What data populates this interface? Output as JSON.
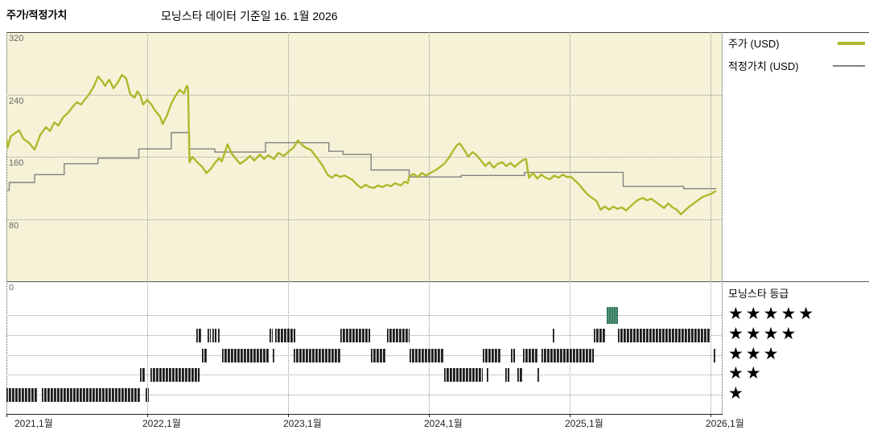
{
  "header": {
    "left_title": "주가/적정가치",
    "main_title": "모닝스타 데이터 기준일 16. 1월 2026"
  },
  "legend": {
    "price_label": "주가 (USD)",
    "fair_value_label": "적정가치 (USD)"
  },
  "rating_legend": {
    "title": "모닝스타 등급",
    "rows": [
      {
        "stars": 5,
        "label": "★★★★★"
      },
      {
        "stars": 4,
        "label": "★★★★"
      },
      {
        "stars": 3,
        "label": "★★★"
      },
      {
        "stars": 2,
        "label": "★★"
      },
      {
        "stars": 1,
        "label": "★"
      }
    ]
  },
  "colors": {
    "price_line": "#AFB82C",
    "fair_value_line": "#828282",
    "plot_background": "#F6F2D7",
    "rating_tick": "#1E1E1E",
    "rating_highlight_green": "#3E8A6B"
  },
  "chart_data": {
    "type": "line",
    "title": "모닝스타 데이터 기준일 16. 1월 2026",
    "x_axis": {
      "unit": "year",
      "range": [
        2021.0,
        2026.08
      ],
      "tick_years": [
        2021,
        2022,
        2023,
        2024,
        2025,
        2026
      ],
      "tick_labels": [
        "2021,1월",
        "2022,1월",
        "2023,1월",
        "2024,1월",
        "2025,1월",
        "2026,1월"
      ]
    },
    "y_axis": {
      "unit": "USD",
      "range": [
        0,
        320
      ],
      "ticks": [
        320,
        240,
        160,
        80,
        0
      ]
    },
    "grid": true,
    "legend_position": "right",
    "series": [
      {
        "name": "주가 (USD)",
        "style": "line",
        "color": "#AFB82C",
        "points": [
          [
            2021.0,
            183
          ],
          [
            2021.01,
            172
          ],
          [
            2021.03,
            186
          ],
          [
            2021.06,
            190
          ],
          [
            2021.09,
            194
          ],
          [
            2021.12,
            183
          ],
          [
            2021.16,
            178
          ],
          [
            2021.2,
            169
          ],
          [
            2021.24,
            188
          ],
          [
            2021.28,
            198
          ],
          [
            2021.31,
            193
          ],
          [
            2021.34,
            204
          ],
          [
            2021.37,
            200
          ],
          [
            2021.4,
            210
          ],
          [
            2021.44,
            217
          ],
          [
            2021.47,
            224
          ],
          [
            2021.5,
            230
          ],
          [
            2021.53,
            227
          ],
          [
            2021.56,
            234
          ],
          [
            2021.59,
            241
          ],
          [
            2021.62,
            250
          ],
          [
            2021.65,
            263
          ],
          [
            2021.68,
            257
          ],
          [
            2021.7,
            251
          ],
          [
            2021.73,
            259
          ],
          [
            2021.76,
            248
          ],
          [
            2021.79,
            255
          ],
          [
            2021.82,
            265
          ],
          [
            2021.85,
            261
          ],
          [
            2021.88,
            240
          ],
          [
            2021.91,
            236
          ],
          [
            2021.93,
            244
          ],
          [
            2021.95,
            239
          ],
          [
            2021.97,
            227
          ],
          [
            2022.0,
            233
          ],
          [
            2022.03,
            227
          ],
          [
            2022.06,
            218
          ],
          [
            2022.09,
            212
          ],
          [
            2022.11,
            202
          ],
          [
            2022.14,
            213
          ],
          [
            2022.17,
            228
          ],
          [
            2022.2,
            238
          ],
          [
            2022.23,
            246
          ],
          [
            2022.26,
            241
          ],
          [
            2022.28,
            251
          ],
          [
            2022.29,
            249
          ],
          [
            2022.3,
            153
          ],
          [
            2022.32,
            160
          ],
          [
            2022.34,
            156
          ],
          [
            2022.36,
            152
          ],
          [
            2022.39,
            147
          ],
          [
            2022.42,
            139
          ],
          [
            2022.45,
            144
          ],
          [
            2022.48,
            152
          ],
          [
            2022.51,
            158
          ],
          [
            2022.53,
            154
          ],
          [
            2022.55,
            165
          ],
          [
            2022.57,
            176
          ],
          [
            2022.6,
            164
          ],
          [
            2022.63,
            157
          ],
          [
            2022.66,
            151
          ],
          [
            2022.7,
            156
          ],
          [
            2022.73,
            161
          ],
          [
            2022.76,
            155
          ],
          [
            2022.8,
            163
          ],
          [
            2022.83,
            157
          ],
          [
            2022.86,
            162
          ],
          [
            2022.9,
            157
          ],
          [
            2022.93,
            165
          ],
          [
            2022.97,
            161
          ],
          [
            2023.0,
            166
          ],
          [
            2023.04,
            172
          ],
          [
            2023.07,
            181
          ],
          [
            2023.1,
            175
          ],
          [
            2023.13,
            171
          ],
          [
            2023.16,
            169
          ],
          [
            2023.19,
            162
          ],
          [
            2023.22,
            155
          ],
          [
            2023.25,
            147
          ],
          [
            2023.28,
            137
          ],
          [
            2023.31,
            133
          ],
          [
            2023.34,
            137
          ],
          [
            2023.37,
            134
          ],
          [
            2023.4,
            136
          ],
          [
            2023.43,
            133
          ],
          [
            2023.46,
            130
          ],
          [
            2023.49,
            124
          ],
          [
            2023.52,
            120
          ],
          [
            2023.55,
            124
          ],
          [
            2023.58,
            121
          ],
          [
            2023.61,
            120
          ],
          [
            2023.64,
            123
          ],
          [
            2023.67,
            121
          ],
          [
            2023.7,
            124
          ],
          [
            2023.73,
            122
          ],
          [
            2023.76,
            126
          ],
          [
            2023.8,
            123
          ],
          [
            2023.83,
            128
          ],
          [
            2023.85,
            126
          ],
          [
            2023.86,
            134
          ],
          [
            2023.89,
            138
          ],
          [
            2023.92,
            134
          ],
          [
            2023.95,
            139
          ],
          [
            2023.98,
            136
          ],
          [
            2024.01,
            139
          ],
          [
            2024.05,
            143
          ],
          [
            2024.08,
            147
          ],
          [
            2024.11,
            151
          ],
          [
            2024.14,
            158
          ],
          [
            2024.17,
            167
          ],
          [
            2024.2,
            175
          ],
          [
            2024.22,
            177
          ],
          [
            2024.25,
            169
          ],
          [
            2024.28,
            160
          ],
          [
            2024.31,
            166
          ],
          [
            2024.34,
            162
          ],
          [
            2024.37,
            155
          ],
          [
            2024.4,
            148
          ],
          [
            2024.43,
            153
          ],
          [
            2024.46,
            146
          ],
          [
            2024.49,
            151
          ],
          [
            2024.52,
            153
          ],
          [
            2024.55,
            148
          ],
          [
            2024.58,
            152
          ],
          [
            2024.61,
            147
          ],
          [
            2024.64,
            152
          ],
          [
            2024.67,
            156
          ],
          [
            2024.69,
            157
          ],
          [
            2024.71,
            133
          ],
          [
            2024.74,
            139
          ],
          [
            2024.77,
            132
          ],
          [
            2024.8,
            137
          ],
          [
            2024.83,
            133
          ],
          [
            2024.86,
            131
          ],
          [
            2024.89,
            136
          ],
          [
            2024.92,
            133
          ],
          [
            2024.95,
            137
          ],
          [
            2024.98,
            134
          ],
          [
            2025.01,
            134
          ],
          [
            2025.04,
            129
          ],
          [
            2025.07,
            124
          ],
          [
            2025.1,
            117
          ],
          [
            2025.13,
            111
          ],
          [
            2025.16,
            107
          ],
          [
            2025.19,
            103
          ],
          [
            2025.22,
            92
          ],
          [
            2025.25,
            96
          ],
          [
            2025.28,
            92
          ],
          [
            2025.31,
            96
          ],
          [
            2025.34,
            93
          ],
          [
            2025.37,
            95
          ],
          [
            2025.4,
            91
          ],
          [
            2025.43,
            96
          ],
          [
            2025.46,
            101
          ],
          [
            2025.49,
            105
          ],
          [
            2025.52,
            107
          ],
          [
            2025.55,
            104
          ],
          [
            2025.58,
            106
          ],
          [
            2025.61,
            102
          ],
          [
            2025.64,
            98
          ],
          [
            2025.67,
            94
          ],
          [
            2025.7,
            100
          ],
          [
            2025.73,
            95
          ],
          [
            2025.76,
            92
          ],
          [
            2025.79,
            86
          ],
          [
            2025.82,
            91
          ],
          [
            2025.85,
            96
          ],
          [
            2025.88,
            100
          ],
          [
            2025.91,
            104
          ],
          [
            2025.94,
            108
          ],
          [
            2025.97,
            110
          ],
          [
            2026.0,
            112
          ],
          [
            2026.04,
            116
          ]
        ]
      },
      {
        "name": "적정가치 (USD)",
        "style": "step",
        "color": "#828282",
        "points": [
          [
            2021.0,
            117
          ],
          [
            2021.02,
            127
          ],
          [
            2021.2,
            137
          ],
          [
            2021.41,
            151
          ],
          [
            2021.65,
            158
          ],
          [
            2021.94,
            170
          ],
          [
            2022.17,
            191
          ],
          [
            2022.3,
            170
          ],
          [
            2022.48,
            166
          ],
          [
            2022.84,
            178
          ],
          [
            2023.29,
            167
          ],
          [
            2023.39,
            163
          ],
          [
            2023.59,
            143
          ],
          [
            2023.86,
            134
          ],
          [
            2024.23,
            136
          ],
          [
            2024.68,
            140
          ],
          [
            2025.38,
            122
          ],
          [
            2025.81,
            119
          ],
          [
            2026.04,
            119
          ]
        ]
      }
    ],
    "ratings_timeline": {
      "row_order": [
        5,
        4,
        3,
        2,
        1
      ],
      "highlight": {
        "stars": 5,
        "start": 2025.26,
        "end": 2025.34
      },
      "segments": [
        {
          "stars": 1,
          "ranges": [
            [
              2021.0,
              2021.22
            ],
            [
              2021.25,
              2021.95
            ],
            [
              2021.99,
              2022.01
            ]
          ]
        },
        {
          "stars": 2,
          "ranges": [
            [
              2021.95,
              2021.98
            ],
            [
              2022.02,
              2022.37
            ],
            [
              2024.11,
              2024.38
            ],
            [
              2024.41,
              2024.42
            ],
            [
              2024.54,
              2024.57
            ],
            [
              2024.63,
              2024.66
            ],
            [
              2024.77,
              2024.79
            ]
          ]
        },
        {
          "stars": 3,
          "ranges": [
            [
              2022.39,
              2022.42
            ],
            [
              2022.53,
              2022.87
            ],
            [
              2022.89,
              2022.9
            ],
            [
              2023.04,
              2023.37
            ],
            [
              2023.59,
              2023.69
            ],
            [
              2023.86,
              2024.11
            ],
            [
              2024.38,
              2024.51
            ],
            [
              2024.58,
              2024.61
            ],
            [
              2024.67,
              2024.77
            ],
            [
              2024.8,
              2025.17
            ],
            [
              2026.02,
              2026.04
            ]
          ]
        },
        {
          "stars": 4,
          "ranges": [
            [
              2022.35,
              2022.38
            ],
            [
              2022.43,
              2022.45
            ],
            [
              2022.46,
              2022.49
            ],
            [
              2022.5,
              2022.52
            ],
            [
              2022.87,
              2022.89
            ],
            [
              2022.91,
              2023.05
            ],
            [
              2023.37,
              2023.58
            ],
            [
              2023.7,
              2023.86
            ],
            [
              2024.88,
              2024.89
            ],
            [
              2025.17,
              2025.25
            ],
            [
              2025.34,
              2026.0
            ]
          ]
        }
      ]
    }
  }
}
